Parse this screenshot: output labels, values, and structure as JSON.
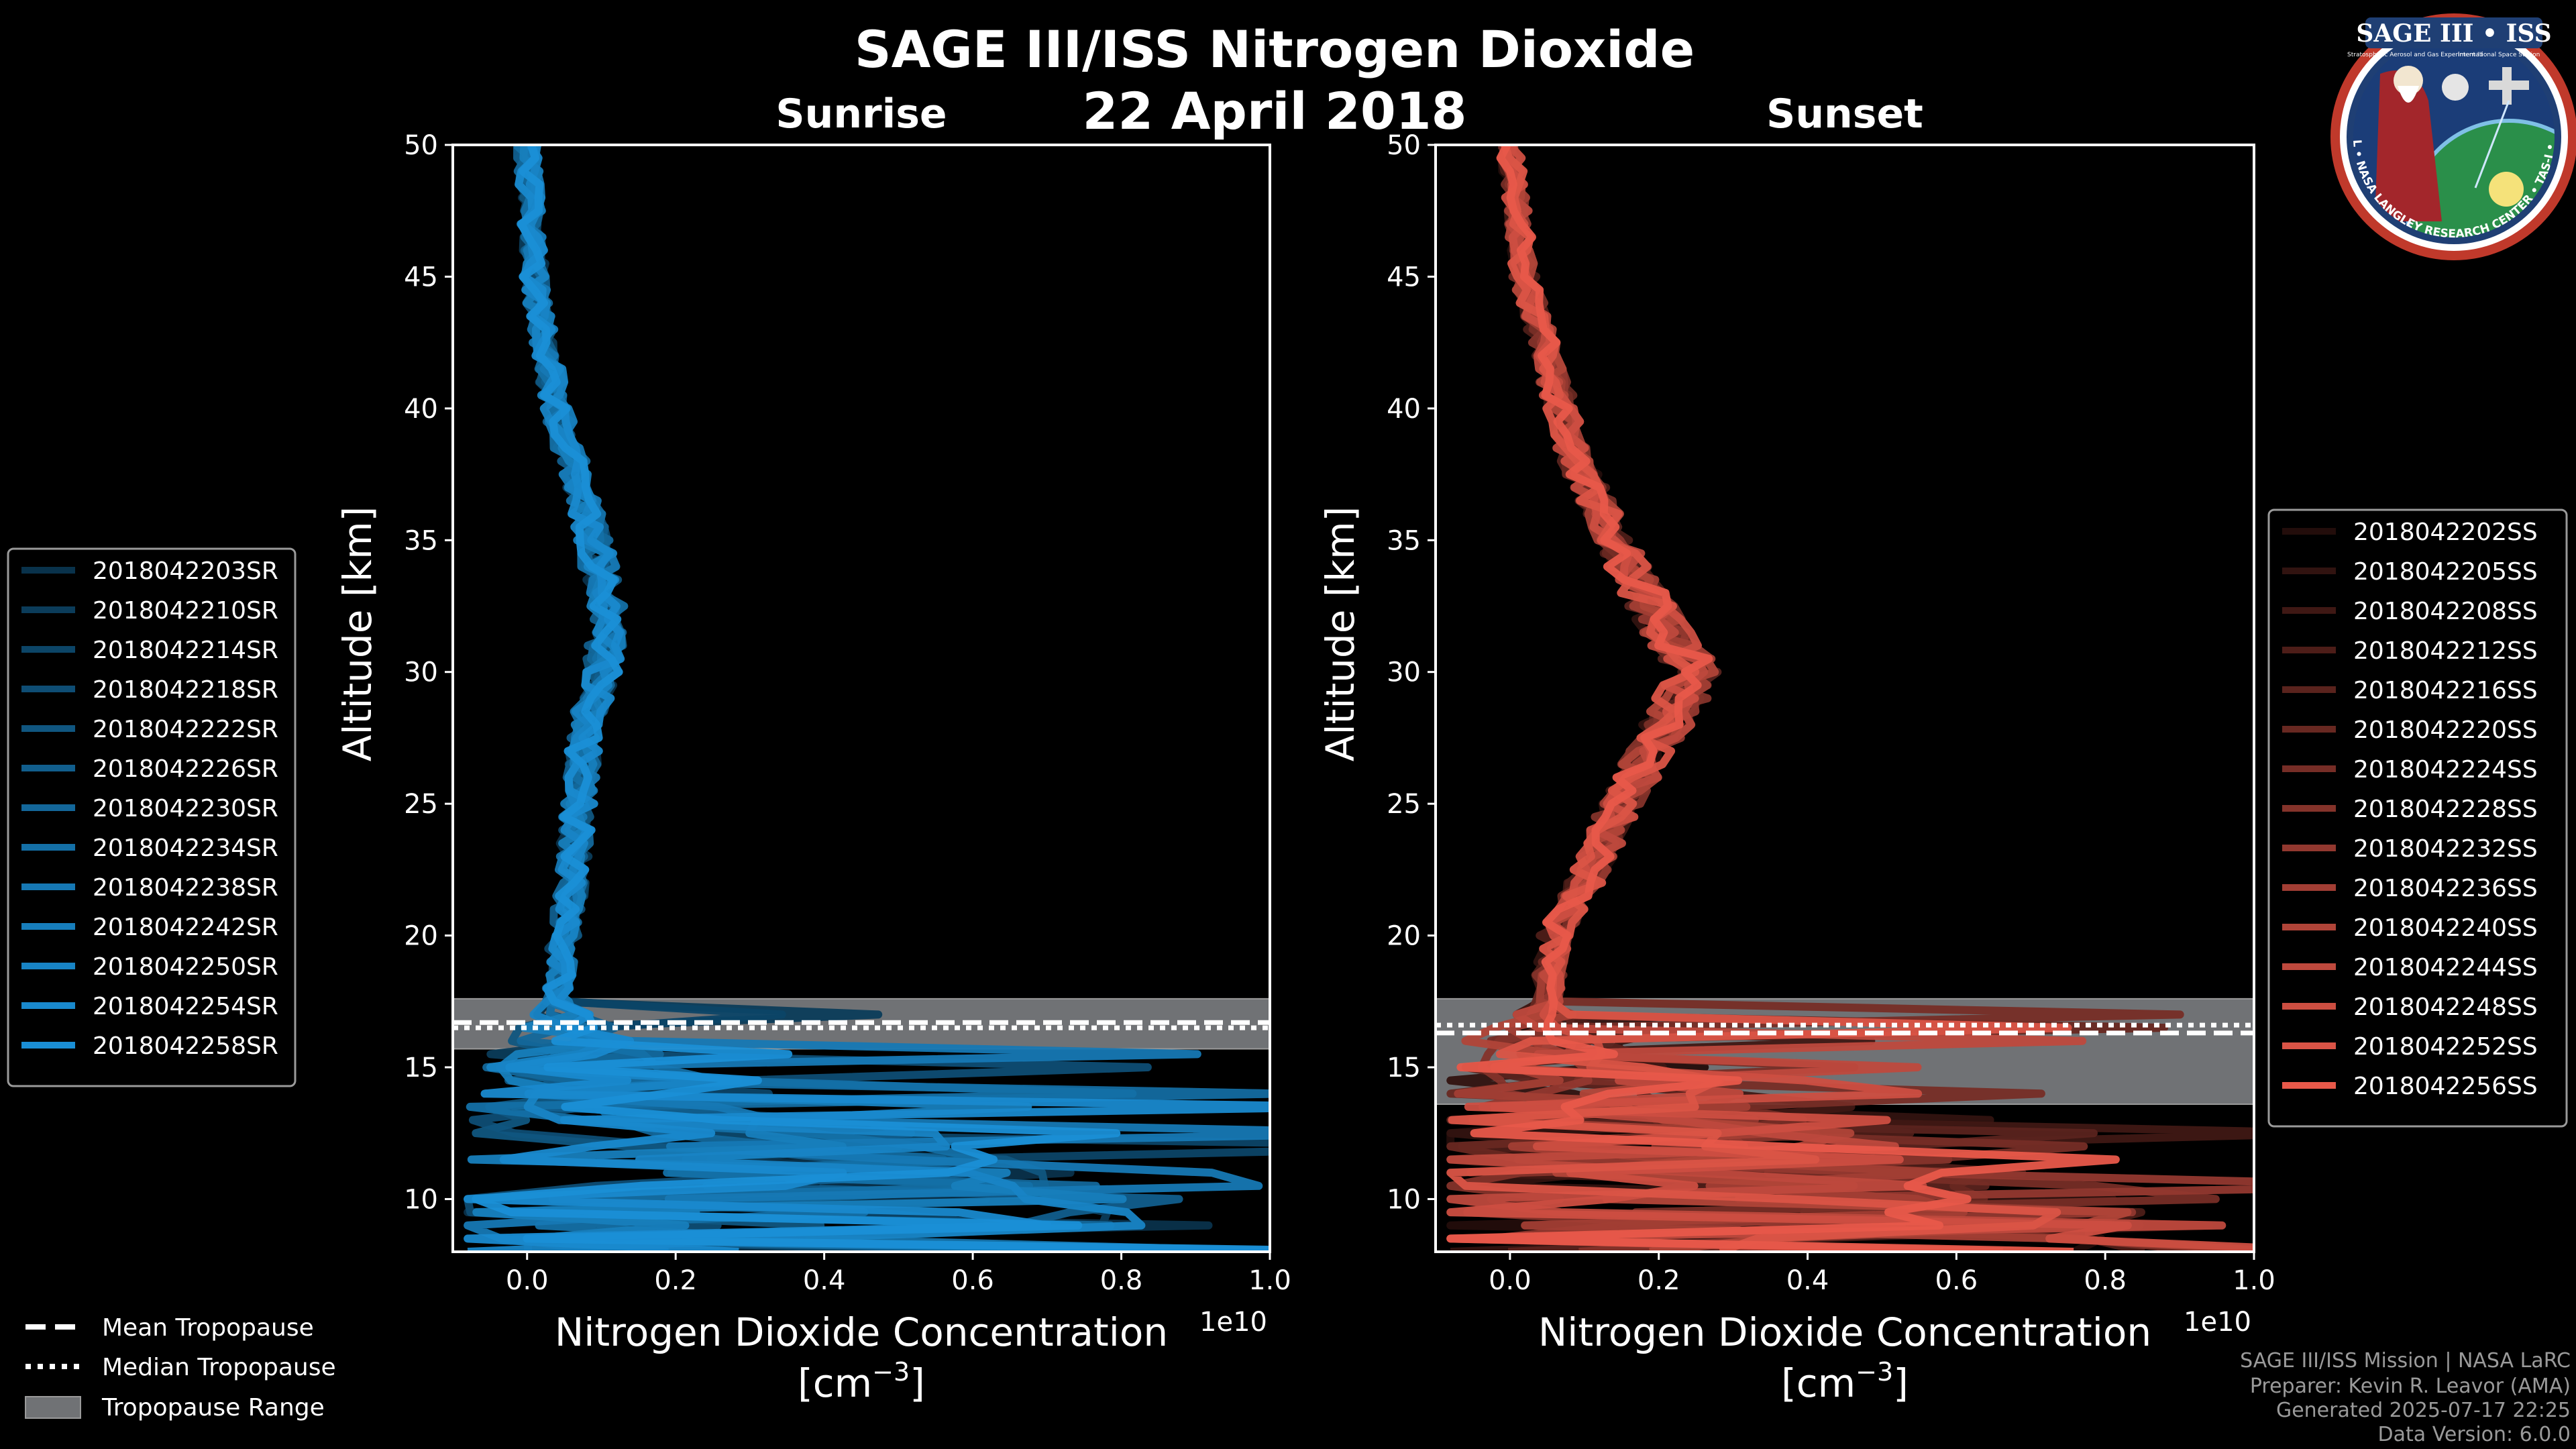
{
  "figure": {
    "title": "SAGE III/ISS Nitrogen Dioxide",
    "date": "22 April 2018"
  },
  "logo": {
    "text": "SAGE III • ISS",
    "subtext_left": "Stratospheric Aerosol and Gas Experiment III",
    "subtext_right": "International Space Station",
    "ring_text": "BALL • NASA LANGLEY RESEARCH CENTER • TAS-I • ESA"
  },
  "credits": [
    "SAGE III/ISS Mission | NASA LaRC",
    "Preparer: Kevin R. Leavor (AMA)",
    "Generated 2025-07-17 22:25",
    "Data Version: 6.0.0"
  ],
  "tropopause_legend": [
    {
      "style": "dashed",
      "label": "Mean Tropopause"
    },
    {
      "style": "dotted",
      "label": "Median Tropopause"
    },
    {
      "style": "box",
      "label": "Tropopause Range"
    }
  ],
  "colors": {
    "sunrise": "#1a8fd6",
    "sunset": "#e8594a",
    "tropopause_fill": "#707275"
  },
  "chart_data": [
    {
      "type": "line",
      "title": "Sunrise",
      "xlabel": "Nitrogen Dioxide Concentration",
      "xunit": "[cm",
      "xunit_exp": "−3",
      "xunit_end": "]",
      "ylabel": "Altitude [km]",
      "x_scale_label": "1e10",
      "xlim": [
        -0.1,
        1.0
      ],
      "ylim": [
        8,
        50
      ],
      "xticks": [
        0.0,
        0.2,
        0.4,
        0.6,
        0.8,
        1.0
      ],
      "xtick_labels": [
        "0.0",
        "0.2",
        "0.4",
        "0.6",
        "0.8",
        "1.0"
      ],
      "yticks": [
        10,
        15,
        20,
        25,
        30,
        35,
        40,
        45,
        50
      ],
      "ytick_labels": [
        "10",
        "15",
        "20",
        "25",
        "30",
        "35",
        "40",
        "45",
        "50"
      ],
      "tropopause": {
        "range": [
          15.7,
          17.6
        ],
        "mean": 16.7,
        "median": 16.5
      },
      "profile_anchors": [
        [
          8,
          0.35
        ],
        [
          10,
          0.3
        ],
        [
          12,
          0.25
        ],
        [
          14,
          0.12
        ],
        [
          16,
          0.05
        ],
        [
          18,
          0.04
        ],
        [
          20,
          0.05
        ],
        [
          22,
          0.06
        ],
        [
          25,
          0.07
        ],
        [
          28,
          0.08
        ],
        [
          30,
          0.1
        ],
        [
          32,
          0.11
        ],
        [
          35,
          0.09
        ],
        [
          38,
          0.06
        ],
        [
          40,
          0.04
        ],
        [
          43,
          0.02
        ],
        [
          45,
          0.01
        ],
        [
          50,
          0.0
        ]
      ],
      "series": [
        {
          "name": "2018042203SR",
          "shade": 0.35
        },
        {
          "name": "2018042210SR",
          "shade": 0.42
        },
        {
          "name": "2018042214SR",
          "shade": 0.48
        },
        {
          "name": "2018042218SR",
          "shade": 0.54
        },
        {
          "name": "2018042222SR",
          "shade": 0.6
        },
        {
          "name": "2018042226SR",
          "shade": 0.66
        },
        {
          "name": "2018042230SR",
          "shade": 0.72
        },
        {
          "name": "2018042234SR",
          "shade": 0.78
        },
        {
          "name": "2018042238SR",
          "shade": 0.84
        },
        {
          "name": "2018042242SR",
          "shade": 0.88
        },
        {
          "name": "2018042250SR",
          "shade": 0.92
        },
        {
          "name": "2018042254SR",
          "shade": 0.96
        },
        {
          "name": "2018042258SR",
          "shade": 1.0
        }
      ]
    },
    {
      "type": "line",
      "title": "Sunset",
      "xlabel": "Nitrogen Dioxide Concentration",
      "xunit": "[cm",
      "xunit_exp": "−3",
      "xunit_end": "]",
      "ylabel": "Altitude [km]",
      "x_scale_label": "1e10",
      "xlim": [
        -0.1,
        1.0
      ],
      "ylim": [
        8,
        50
      ],
      "xticks": [
        0.0,
        0.2,
        0.4,
        0.6,
        0.8,
        1.0
      ],
      "xtick_labels": [
        "0.0",
        "0.2",
        "0.4",
        "0.6",
        "0.8",
        "1.0"
      ],
      "yticks": [
        10,
        15,
        20,
        25,
        30,
        35,
        40,
        45,
        50
      ],
      "ytick_labels": [
        "10",
        "15",
        "20",
        "25",
        "30",
        "35",
        "40",
        "45",
        "50"
      ],
      "tropopause": {
        "range": [
          13.6,
          17.6
        ],
        "mean": 16.3,
        "median": 16.6
      },
      "profile_anchors": [
        [
          8,
          0.4
        ],
        [
          10,
          0.3
        ],
        [
          12,
          0.18
        ],
        [
          14,
          0.08
        ],
        [
          16,
          0.04
        ],
        [
          18,
          0.05
        ],
        [
          20,
          0.06
        ],
        [
          22,
          0.1
        ],
        [
          25,
          0.15
        ],
        [
          28,
          0.21
        ],
        [
          30,
          0.25
        ],
        [
          32,
          0.2
        ],
        [
          35,
          0.14
        ],
        [
          38,
          0.09
        ],
        [
          40,
          0.07
        ],
        [
          43,
          0.04
        ],
        [
          45,
          0.02
        ],
        [
          50,
          0.0
        ]
      ],
      "series": [
        {
          "name": "2018042202SS",
          "shade": 0.15
        },
        {
          "name": "2018042205SS",
          "shade": 0.21
        },
        {
          "name": "2018042208SS",
          "shade": 0.27
        },
        {
          "name": "2018042212SS",
          "shade": 0.33
        },
        {
          "name": "2018042216SS",
          "shade": 0.39
        },
        {
          "name": "2018042220SS",
          "shade": 0.45
        },
        {
          "name": "2018042224SS",
          "shade": 0.51
        },
        {
          "name": "2018042228SS",
          "shade": 0.57
        },
        {
          "name": "2018042232SS",
          "shade": 0.63
        },
        {
          "name": "2018042236SS",
          "shade": 0.7
        },
        {
          "name": "2018042240SS",
          "shade": 0.76
        },
        {
          "name": "2018042244SS",
          "shade": 0.82
        },
        {
          "name": "2018042248SS",
          "shade": 0.88
        },
        {
          "name": "2018042252SS",
          "shade": 0.94
        },
        {
          "name": "2018042256SS",
          "shade": 1.0
        }
      ]
    }
  ]
}
